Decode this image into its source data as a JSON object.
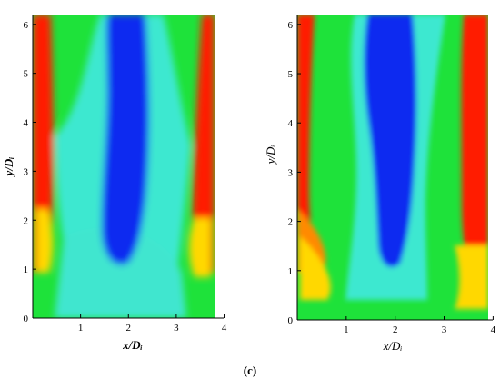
{
  "caption": "(c)",
  "chart_data": [
    {
      "type": "heatmap",
      "xlabel": "x/Dᵢ",
      "ylabel": "y/Dᵢ",
      "xlim": [
        0,
        3.8
      ],
      "ylim": [
        0,
        6.2
      ],
      "xticks": [
        "1",
        "2",
        "3",
        "4"
      ],
      "yticks": [
        "0",
        "1",
        "2",
        "3",
        "4",
        "5",
        "6"
      ],
      "colormap": [
        "#0000ff",
        "#00e0ff",
        "#00ff00",
        "#ffff00",
        "#ff0000"
      ]
    },
    {
      "type": "heatmap",
      "xlabel": "x/Dᵢ",
      "ylabel": "y/Dᵢ",
      "xlim": [
        0,
        3.9
      ],
      "ylim": [
        0,
        6.2
      ],
      "xticks": [
        "1",
        "2",
        "3",
        "4"
      ],
      "yticks": [
        "0",
        "1",
        "2",
        "3",
        "4",
        "5",
        "6"
      ],
      "colormap": [
        "#0000ff",
        "#00e0ff",
        "#00ff00",
        "#ffff00",
        "#ff0000"
      ]
    }
  ]
}
